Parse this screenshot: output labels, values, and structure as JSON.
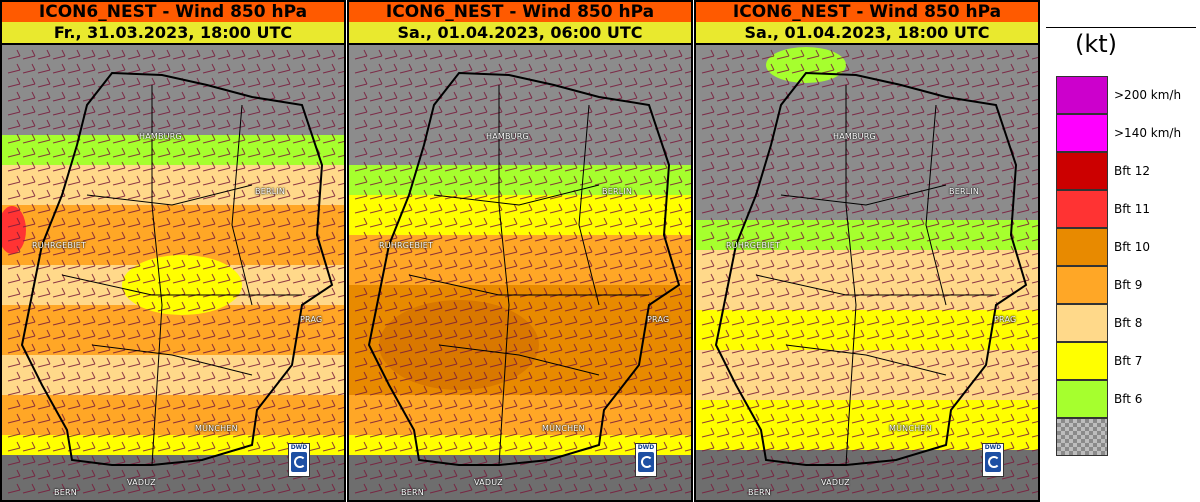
{
  "panels": [
    {
      "model": "ICON6_NEST - Wind 850 hPa",
      "time": "Fr., 31.03.2023, 18:00 UTC",
      "cities": {
        "hamburg": "HAMBURG",
        "berlin": "BERLIN",
        "ruhrgebiet": "RUHRGEBIET",
        "prag": "PRAG",
        "muenchen": "MÜNCHEN",
        "vaduz": "VADUZ",
        "bern": "BERN"
      }
    },
    {
      "model": "ICON6_NEST - Wind 850 hPa",
      "time": "Sa., 01.04.2023, 06:00 UTC",
      "cities": {
        "hamburg": "HAMBURG",
        "berlin": "BERLIN",
        "ruhrgebiet": "RUHRGEBIET",
        "prag": "PRAG",
        "muenchen": "MÜNCHEN",
        "vaduz": "VADUZ",
        "bern": "BERN"
      }
    },
    {
      "model": "ICON6_NEST - Wind 850 hPa",
      "time": "Sa., 01.04.2023, 18:00 UTC",
      "cities": {
        "hamburg": "HAMBURG",
        "berlin": "BERLIN",
        "ruhrgebiet": "RUHRGEBIET",
        "prag": "PRAG",
        "muenchen": "MÜNCHEN",
        "vaduz": "VADUZ",
        "bern": "BERN"
      }
    }
  ],
  "logo": "DWD",
  "legend": {
    "unit": "(kt)",
    "items": [
      {
        "label": ">200 km/h",
        "color": "#cc00cc"
      },
      {
        "label": ">140 km/h",
        "color": "#ff00ff"
      },
      {
        "label": "Bft 12",
        "color": "#cc0000"
      },
      {
        "label": "Bft 11",
        "color": "#ff3333"
      },
      {
        "label": "Bft 10",
        "color": "#e88a00"
      },
      {
        "label": "Bft 9",
        "color": "#ffa726"
      },
      {
        "label": "Bft 8",
        "color": "#ffd98a"
      },
      {
        "label": "Bft 7",
        "color": "#ffff00"
      },
      {
        "label": "Bft 6",
        "color": "#a6ff2e"
      },
      {
        "label": "",
        "color": "checker"
      }
    ]
  },
  "colors": {
    "title_bar": "#ff5a00",
    "subtitle_bar": "#e9e92e",
    "barb": "#7a1b3c",
    "border": "#000000",
    "sea_gray": "#8c8c8c"
  }
}
